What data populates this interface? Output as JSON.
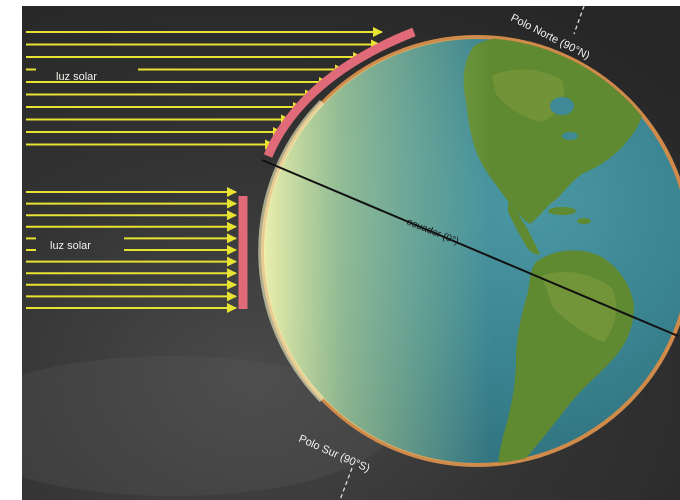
{
  "labels": {
    "sunlight_upper": "luz solar",
    "sunlight_lower": "luz solar",
    "north_pole": "Polo Norte (90°N)",
    "south_pole": "Polo Sur (90°S)",
    "equator": "ecuador (0°)"
  },
  "colors": {
    "background": "#2b2b2b",
    "sun_rays": "#e8e232",
    "energy_band": "#e06a78",
    "ocean": "#3f8a96",
    "land": "#5f8a32",
    "label_text": "#f2f2ee"
  },
  "icons": {
    "ray_arrow": "arrow-right-icon"
  }
}
